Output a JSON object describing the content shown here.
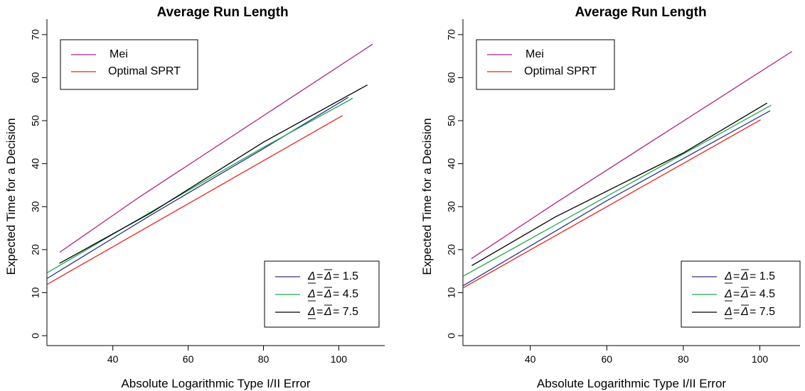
{
  "chart_data": [
    {
      "type": "line",
      "title": "Average Run Length",
      "xlabel": "Absolute Logarithmic Type I/II Error",
      "ylabel": "Expected Time for a Decision",
      "xlim": [
        22.5,
        112.2
      ],
      "ylim": [
        -2.3,
        73.6
      ],
      "xticks": [
        40,
        60,
        80,
        100
      ],
      "yticks": [
        0,
        10,
        20,
        30,
        40,
        50,
        60,
        70
      ],
      "legend_top": {
        "placement": "top-left",
        "entries": [
          {
            "label": "Mei",
            "color": "#b0208a"
          },
          {
            "label": "Optimal SPRT",
            "color": "#e8241c"
          }
        ]
      },
      "legend_bottom": {
        "placement": "bottom-right",
        "entries": [
          {
            "prefix": "Δ",
            "mid": "=",
            "over": "Δ",
            "suffix": "= 1.5",
            "color": "#27358c"
          },
          {
            "prefix": "Δ",
            "mid": "=",
            "over": "Δ",
            "suffix": "= 4.5",
            "color": "#1fa84a"
          },
          {
            "prefix": "Δ",
            "mid": "=",
            "over": "Δ",
            "suffix": "= 7.5",
            "color": "#000000"
          }
        ]
      },
      "series": [
        {
          "color": "#b0208a",
          "points": [
            [
              25.9,
              19.4
            ],
            [
              47.0,
              32.2
            ],
            [
              109.0,
              67.8
            ]
          ]
        },
        {
          "color": "#e8241c",
          "points": [
            [
              22.5,
              11.9
            ],
            [
              101.0,
              51.2
            ]
          ]
        },
        {
          "color": "#27358c",
          "points": [
            [
              22.5,
              13.3
            ],
            [
              50.0,
              28.0
            ],
            [
              80.0,
              43.5
            ],
            [
              102.5,
              55.4
            ]
          ]
        },
        {
          "color": "#1fa84a",
          "points": [
            [
              22.5,
              14.6
            ],
            [
              50.0,
              28.7
            ],
            [
              80.0,
              43.8
            ],
            [
              103.7,
              55.2
            ]
          ]
        },
        {
          "color": "#000000",
          "points": [
            [
              25.8,
              16.8
            ],
            [
              50.0,
              28.5
            ],
            [
              80.0,
              45.0
            ],
            [
              107.6,
              58.3
            ]
          ]
        }
      ]
    },
    {
      "type": "line",
      "title": "Average Run Length",
      "xlabel": "Absolute Logarithmic Type I/II Error",
      "ylabel": "Expected Time for a Decision",
      "xlim": [
        22.4,
        110.5
      ],
      "ylim": [
        -2.3,
        73.6
      ],
      "xticks": [
        40,
        60,
        80,
        100
      ],
      "yticks": [
        0,
        10,
        20,
        30,
        40,
        50,
        60,
        70
      ],
      "legend_top": {
        "placement": "top-left",
        "entries": [
          {
            "label": "Mei",
            "color": "#b0208a"
          },
          {
            "label": "Optimal SPRT",
            "color": "#e8241c"
          }
        ]
      },
      "legend_bottom": {
        "placement": "bottom-right",
        "entries": [
          {
            "prefix": "Δ",
            "mid": "=",
            "over": "Δ",
            "suffix": "= 1.5",
            "color": "#27358c"
          },
          {
            "prefix": "Δ",
            "mid": "=",
            "over": "Δ",
            "suffix": "= 4.5",
            "color": "#1fa84a"
          },
          {
            "prefix": "Δ",
            "mid": "=",
            "over": "Δ",
            "suffix": "= 7.5",
            "color": "#000000"
          }
        ]
      },
      "series": [
        {
          "color": "#b0208a",
          "points": [
            [
              24.6,
              17.9
            ],
            [
              46.5,
              30.8
            ],
            [
              108.4,
              66.1
            ]
          ]
        },
        {
          "color": "#e8241c",
          "points": [
            [
              22.4,
              11.1
            ],
            [
              100.2,
              50.2
            ]
          ]
        },
        {
          "color": "#27358c",
          "points": [
            [
              22.4,
              11.6
            ],
            [
              60.0,
              31.4
            ],
            [
              102.7,
              52.3
            ]
          ]
        },
        {
          "color": "#1fa84a",
          "points": [
            [
              22.4,
              13.8
            ],
            [
              60.0,
              32.4
            ],
            [
              103.0,
              53.6
            ]
          ]
        },
        {
          "color": "#000000",
          "points": [
            [
              24.7,
              16.3
            ],
            [
              46.5,
              27.6
            ],
            [
              80.0,
              42.5
            ],
            [
              101.9,
              54.1
            ]
          ]
        }
      ]
    }
  ]
}
